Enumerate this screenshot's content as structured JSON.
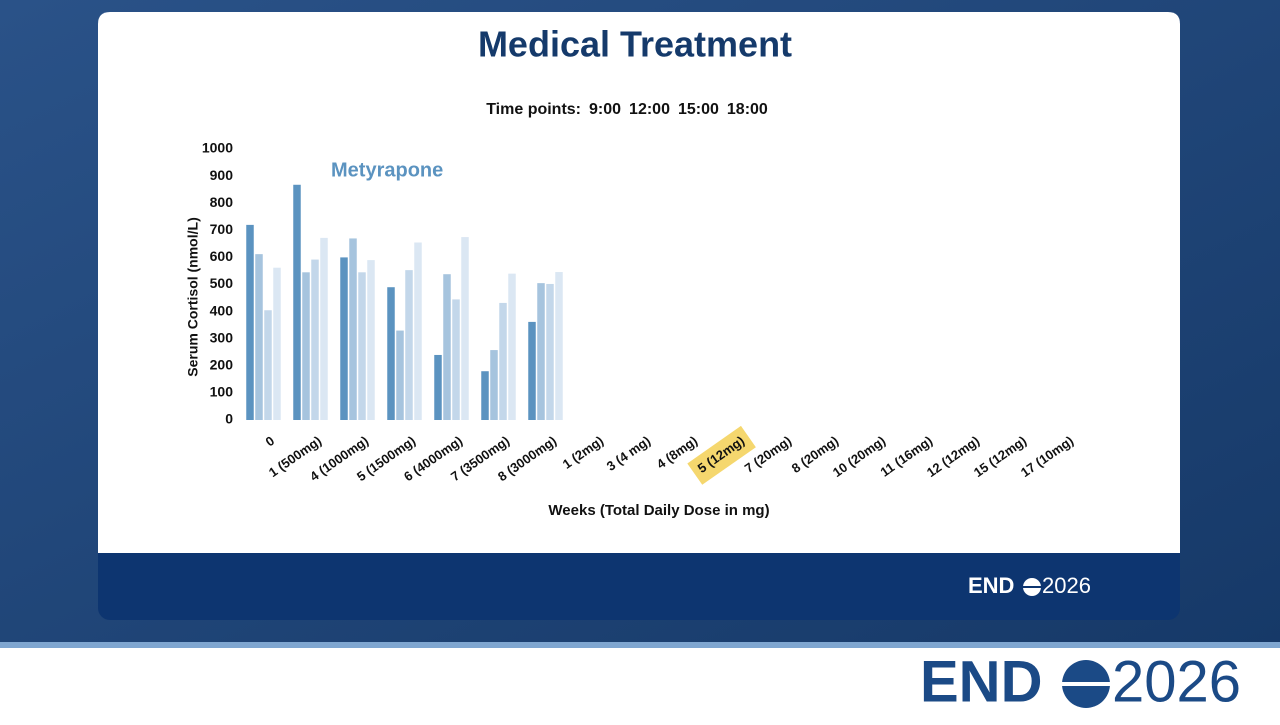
{
  "chart_data": {
    "type": "bar",
    "title": "Medical Treatment",
    "subtitle": "Time points:",
    "annotation": "Metyrapone",
    "y_label": "Serum Cortisol (nmol/L)",
    "x_label": "Weeks (Total Daily Dose in mg)",
    "categories": [
      "0",
      "1 (500mg)",
      "4 (1000mg)",
      "5 (1500mg)",
      "6 (4000mg)",
      "7 (3500mg)",
      "8 (3000mg)",
      "1 (2mg)",
      "3 (4 mg)",
      "4 (8mg)",
      "5 (12mg)",
      "7 (20mg)",
      "8 (20mg)",
      "10 (20mg)",
      "11 (16mg)",
      "12 (12mg)",
      "15 (12mg)",
      "17 (10mg)"
    ],
    "highlight_index": 10,
    "highlight_color": "#f5d76e",
    "series": [
      {
        "name": "9:00",
        "color": "#5b93c0",
        "values": [
          720,
          868,
          600,
          490,
          240,
          180,
          362,
          null,
          null,
          null,
          null,
          null,
          null,
          null,
          null,
          null,
          null,
          null
        ]
      },
      {
        "name": "12:00",
        "color": "#a6c4de",
        "values": [
          612,
          545,
          670,
          330,
          538,
          258,
          505,
          null,
          null,
          null,
          null,
          null,
          null,
          null,
          null,
          null,
          null,
          null
        ]
      },
      {
        "name": "15:00",
        "color": "#c3d7ea",
        "values": [
          405,
          592,
          545,
          553,
          445,
          432,
          502,
          null,
          null,
          null,
          null,
          null,
          null,
          null,
          null,
          null,
          null,
          null
        ]
      },
      {
        "name": "18:00",
        "color": "#dbe7f3",
        "values": [
          562,
          672,
          590,
          655,
          675,
          540,
          546,
          null,
          null,
          null,
          null,
          null,
          null,
          null,
          null,
          null,
          null,
          null
        ]
      }
    ],
    "ylim": [
      0,
      1000
    ],
    "yticks": [
      0,
      100,
      200,
      300,
      400,
      500,
      600,
      700,
      800,
      900,
      1000
    ],
    "grid": false
  },
  "branding": {
    "logo_left": "END",
    "logo_right": "2026"
  }
}
